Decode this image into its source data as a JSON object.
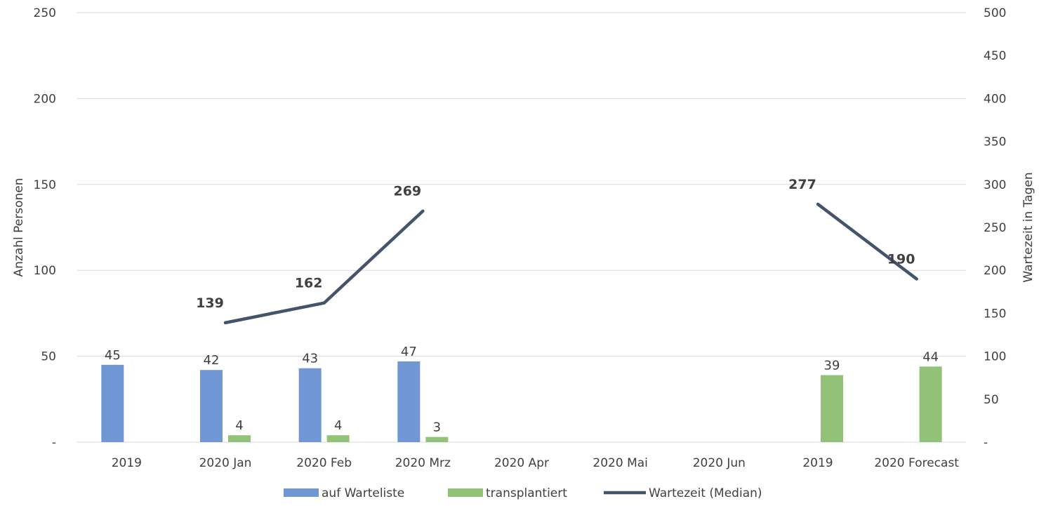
{
  "chart_data": {
    "type": "bar",
    "categories": [
      "2019",
      "2020 Jan",
      "2020 Feb",
      "2020 Mrz",
      "2020 Apr",
      "2020 Mai",
      "2020 Jun",
      "2019",
      "2020 Forecast"
    ],
    "series": [
      {
        "name": "auf Warteliste",
        "kind": "bar",
        "axis": "left",
        "color": "#7196D4",
        "values": [
          45,
          42,
          43,
          47,
          null,
          null,
          null,
          null,
          null
        ]
      },
      {
        "name": "transplantiert",
        "kind": "bar",
        "axis": "left",
        "color": "#92C277",
        "values": [
          null,
          4,
          4,
          3,
          null,
          null,
          null,
          39,
          44
        ]
      },
      {
        "name": "Wartezeit (Median)",
        "kind": "line",
        "axis": "right",
        "color": "#44546A",
        "values": [
          null,
          139,
          162,
          269,
          null,
          null,
          null,
          277,
          190
        ]
      }
    ],
    "ylabel": "Anzahl Personen",
    "y2label": "Wartezeit in Tagen",
    "ylim": [
      0,
      250
    ],
    "y2lim": [
      0,
      500
    ],
    "yticks": [
      "-",
      "50",
      "100",
      "150",
      "200",
      "250"
    ],
    "y2ticks": [
      "-",
      "50",
      "100",
      "150",
      "200",
      "250",
      "300",
      "350",
      "400",
      "450",
      "500"
    ],
    "grid": true,
    "legend_position": "bottom"
  }
}
